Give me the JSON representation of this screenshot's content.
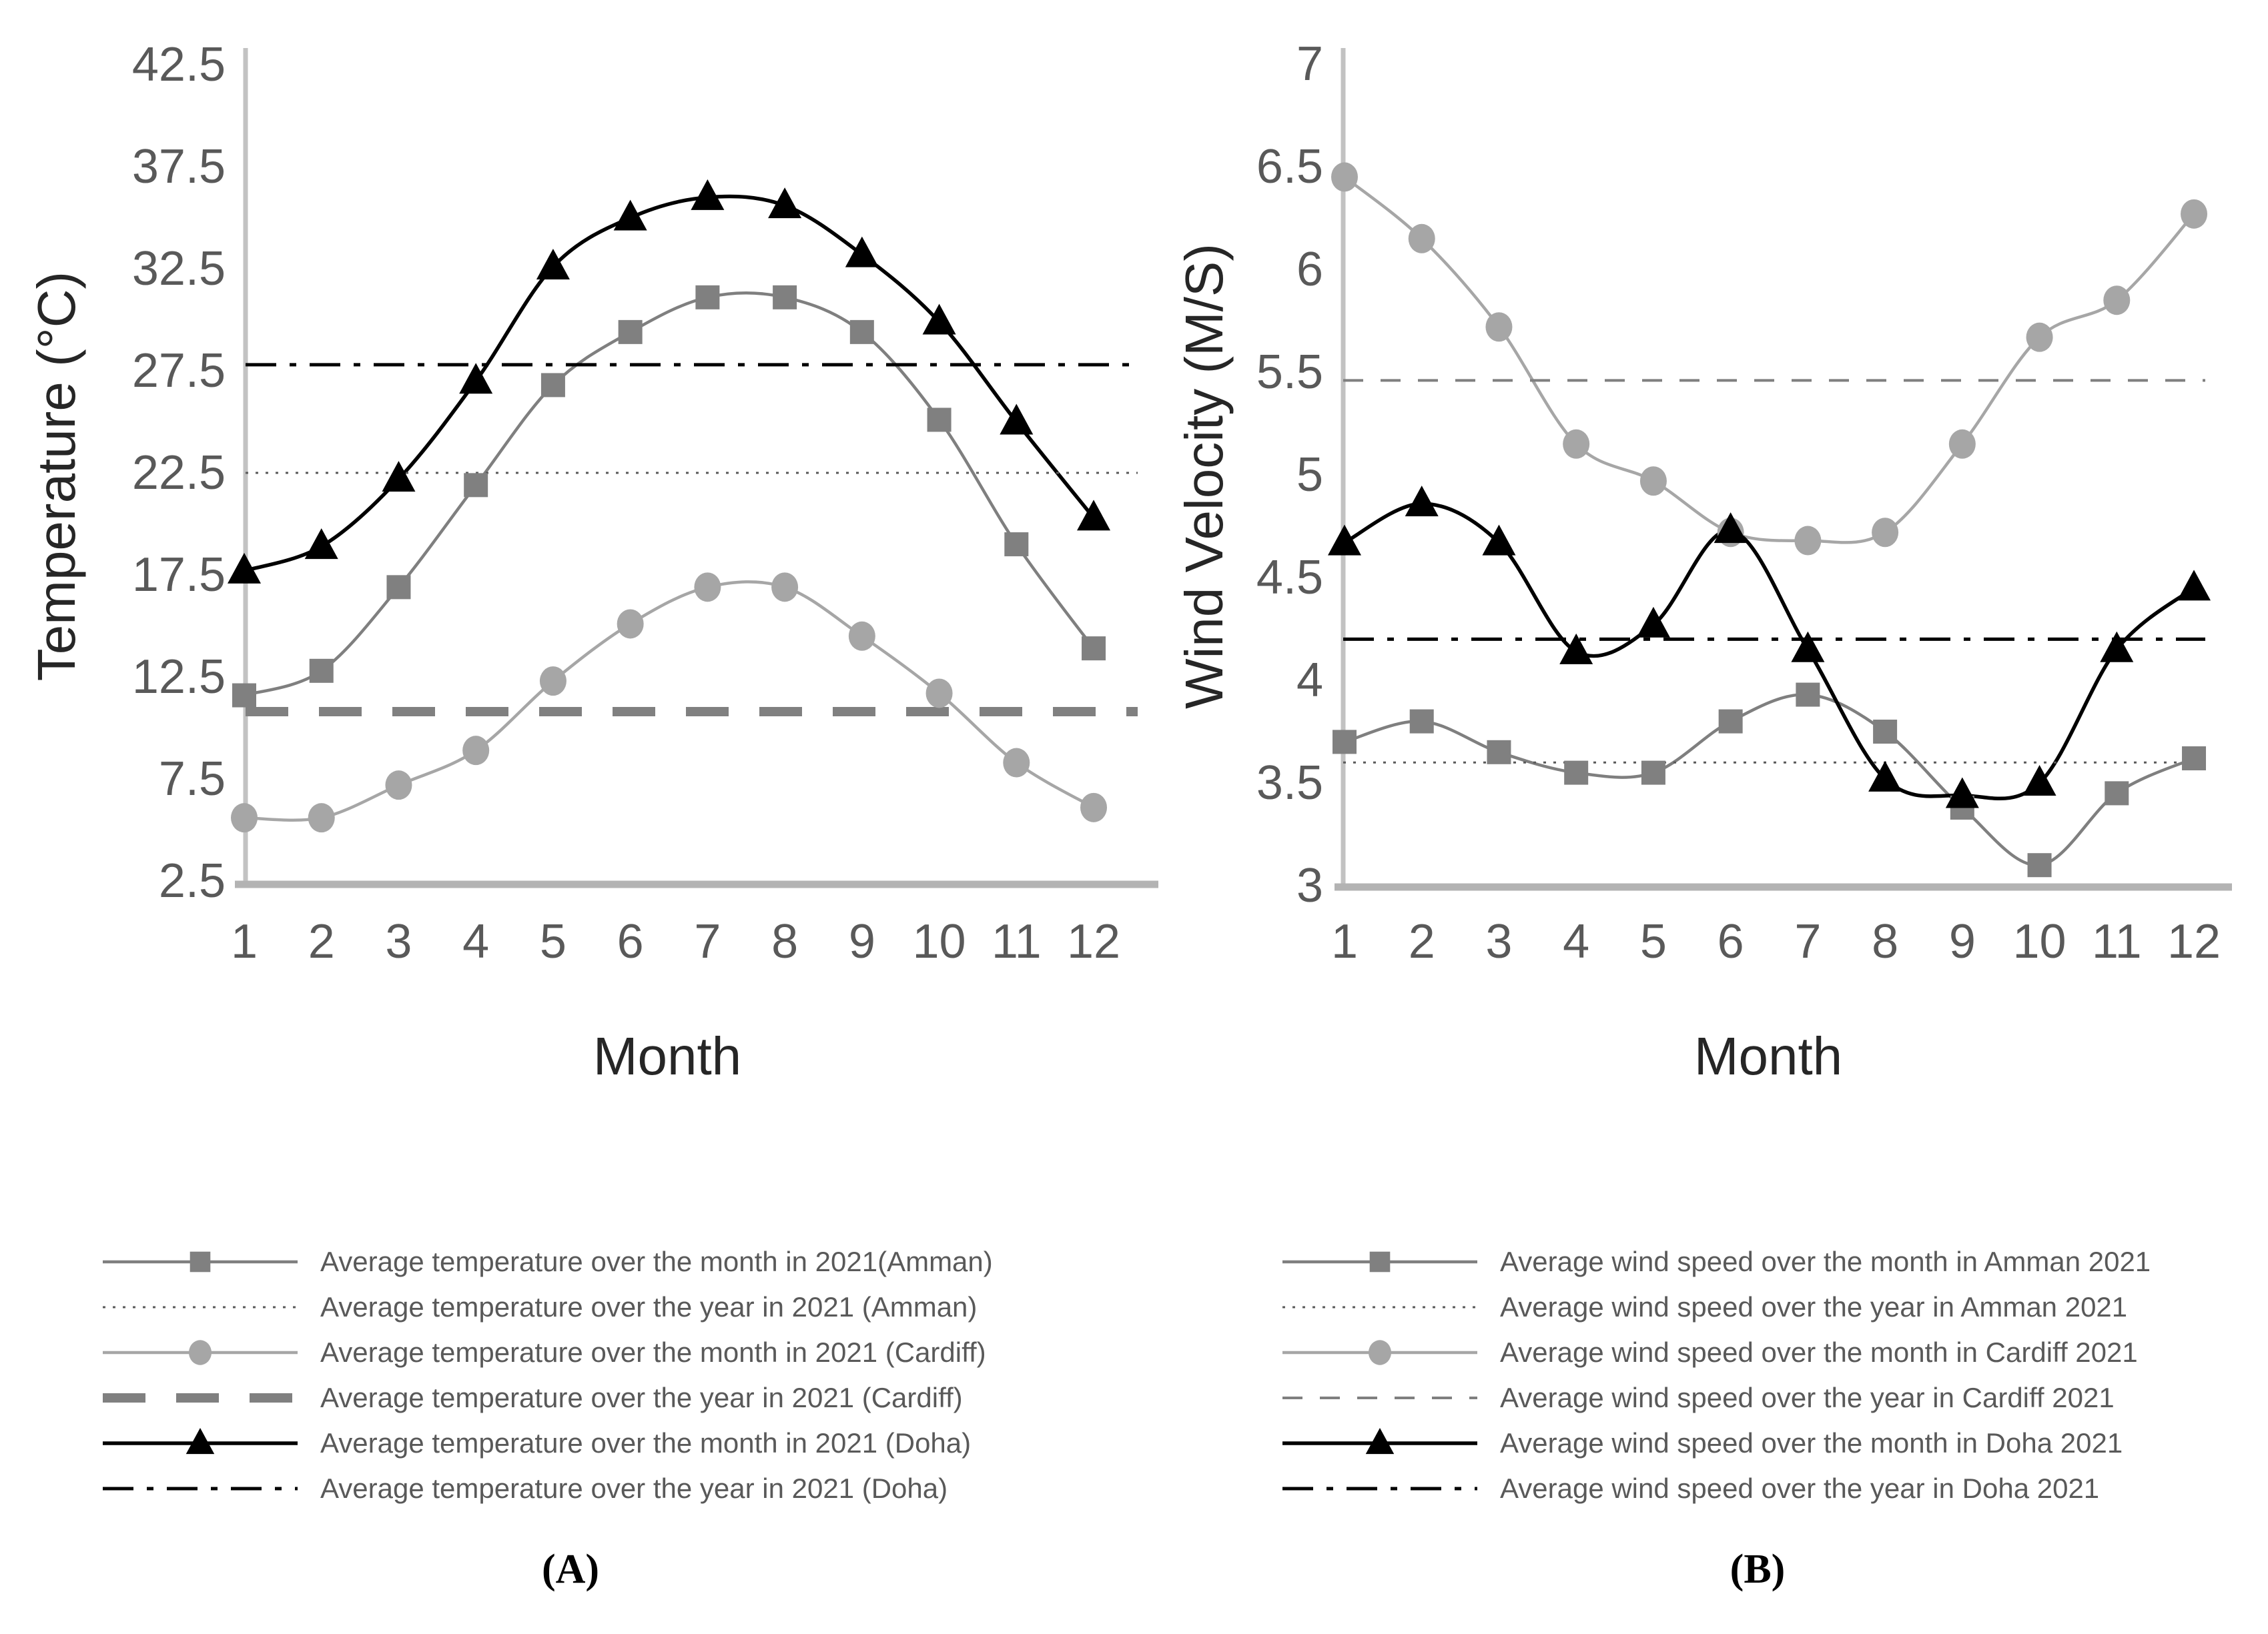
{
  "page": {
    "background": "#ffffff"
  },
  "colors": {
    "amman": "#7f7f7f",
    "amman_marker": "#808080",
    "cardiff": "#a6a6a6",
    "doha": "#000000",
    "axis_line": "#c2c2c2",
    "baseline": "#b3b3b3",
    "tick_text": "#595959"
  },
  "chart_data": [
    {
      "id": "temperature",
      "type": "line",
      "caption": "(A)",
      "xlabel": "Month",
      "ylabel": "Temperature (°C)",
      "ylim": [
        2.5,
        42.5
      ],
      "grid": false,
      "legend_position": "bottom",
      "y_ticks": [
        "42.5",
        "37.5",
        "32.5",
        "27.5",
        "22.5",
        "17.5",
        "12.5",
        "7.5",
        "2.5"
      ],
      "x_ticks": [
        "1",
        "2",
        "3",
        "4",
        "5",
        "6",
        "7",
        "8",
        "9",
        "10",
        "11",
        "12"
      ],
      "categories": [
        1,
        2,
        3,
        4,
        5,
        6,
        7,
        8,
        9,
        10,
        11,
        12
      ],
      "series": [
        {
          "label": "Average temperature over the month in 2021(Amman)",
          "city": "Amman",
          "kind": "monthly",
          "marker": "square",
          "line_style": "solid",
          "color": "#7f7f7f",
          "values": [
            11.6,
            12.8,
            16.9,
            21.9,
            26.8,
            29.4,
            31.1,
            31.1,
            29.4,
            25.1,
            19.0,
            13.9
          ]
        },
        {
          "label": "Average temperature over the year in 2021 (Amman)",
          "city": "Amman",
          "kind": "yearly-average",
          "line_style": "dotted",
          "color": "#595959",
          "value": 22.5
        },
        {
          "label": "Average temperature over the month in 2021 (Cardiff)",
          "city": "Cardiff",
          "kind": "monthly",
          "marker": "circle",
          "line_style": "solid",
          "color": "#a6a6a6",
          "values": [
            5.6,
            5.6,
            7.2,
            8.9,
            12.3,
            15.1,
            16.9,
            16.9,
            14.5,
            11.7,
            8.3,
            6.1
          ]
        },
        {
          "label": "Average temperature over the year in 2021 (Cardiff)",
          "city": "Cardiff",
          "kind": "yearly-average",
          "line_style": "dashed-thick",
          "color": "#808080",
          "value": 10.8
        },
        {
          "label": "Average temperature over the month in 2021 (Doha)",
          "city": "Doha",
          "kind": "monthly",
          "marker": "triangle",
          "line_style": "solid",
          "color": "#000000",
          "values": [
            17.7,
            18.9,
            22.2,
            27.0,
            32.6,
            35.0,
            36.0,
            35.6,
            33.2,
            29.9,
            25.0,
            20.3
          ]
        },
        {
          "label": "Average temperature over the year in 2021 (Doha)",
          "city": "Doha",
          "kind": "yearly-average",
          "line_style": "dash-dot",
          "color": "#000000",
          "value": 27.8
        }
      ]
    },
    {
      "id": "wind",
      "type": "line",
      "caption": "(B)",
      "xlabel": "Month",
      "ylabel": "Wind Velocity (M/S)",
      "ylim": [
        3,
        7
      ],
      "grid": false,
      "legend_position": "bottom",
      "y_ticks": [
        "7",
        "6.5",
        "6",
        "5.5",
        "5",
        "4.5",
        "4",
        "3.5",
        "3"
      ],
      "x_ticks": [
        "1",
        "2",
        "3",
        "4",
        "5",
        "6",
        "7",
        "8",
        "9",
        "10",
        "11",
        "12"
      ],
      "categories": [
        1,
        2,
        3,
        4,
        5,
        6,
        7,
        8,
        9,
        10,
        11,
        12
      ],
      "series": [
        {
          "label": "Average wind speed over the month in Amman 2021",
          "city": "Amman",
          "kind": "monthly",
          "marker": "square",
          "line_style": "solid",
          "color": "#7f7f7f",
          "values": [
            3.7,
            3.8,
            3.65,
            3.55,
            3.55,
            3.8,
            3.93,
            3.75,
            3.38,
            3.1,
            3.45,
            3.62
          ]
        },
        {
          "label": "Average wind speed over the year in Amman 2021",
          "city": "Amman",
          "kind": "yearly-average",
          "line_style": "dotted",
          "color": "#595959",
          "value": 3.6
        },
        {
          "label": "Average wind speed over the month in Cardiff 2021",
          "city": "Cardiff",
          "kind": "monthly",
          "marker": "circle",
          "line_style": "solid",
          "color": "#a6a6a6",
          "values": [
            6.45,
            6.15,
            5.72,
            5.15,
            4.97,
            4.72,
            4.68,
            4.72,
            5.15,
            5.67,
            5.85,
            6.27
          ]
        },
        {
          "label": "Average wind speed over the year in Cardiff 2021",
          "city": "Cardiff",
          "kind": "yearly-average",
          "line_style": "dashed",
          "color": "#7f7f7f",
          "value": 5.46
        },
        {
          "label": "Average wind speed over the month in Doha 2021",
          "city": "Doha",
          "kind": "monthly",
          "marker": "triangle",
          "line_style": "solid",
          "color": "#000000",
          "values": [
            4.67,
            4.86,
            4.67,
            4.14,
            4.27,
            4.73,
            4.15,
            3.52,
            3.44,
            3.5,
            4.15,
            4.45
          ]
        },
        {
          "label": "Average wind speed over the year in Doha 2021",
          "city": "Doha",
          "kind": "yearly-average",
          "line_style": "dash-dot",
          "color": "#000000",
          "value": 4.2
        }
      ]
    }
  ]
}
